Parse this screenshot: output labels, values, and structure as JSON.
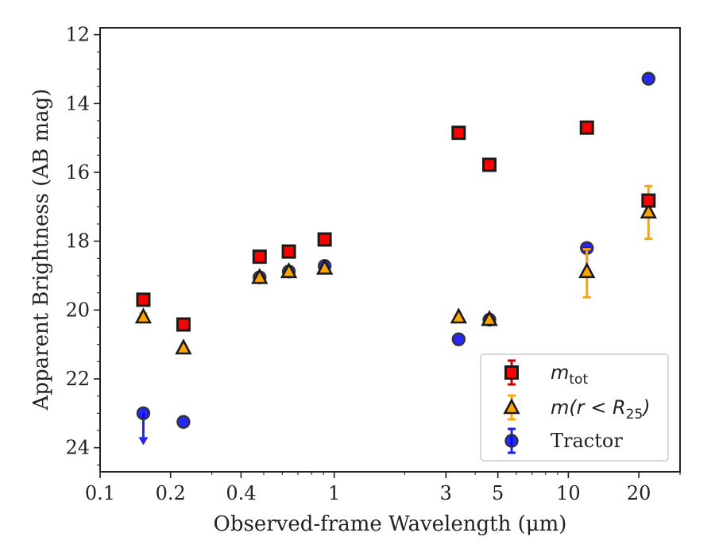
{
  "chart_data": {
    "type": "scatter",
    "xlabel": "Observed-frame Wavelength (μm)",
    "ylabel": "Apparent Brightness (AB mag)",
    "x_scale": "log",
    "xlim": [
      0.1,
      30
    ],
    "ylim": [
      24.7,
      11.8
    ],
    "y_inverted": true,
    "x_ticks": [
      0.1,
      0.2,
      0.4,
      1,
      3,
      5,
      10,
      20
    ],
    "x_tick_labels": [
      "0.1",
      "0.2",
      "0.4",
      "1",
      "3",
      "5",
      "10",
      "20"
    ],
    "y_ticks": [
      12,
      14,
      16,
      18,
      20,
      22,
      24
    ],
    "y_tick_labels": [
      "12",
      "14",
      "16",
      "18",
      "20",
      "22",
      "24"
    ],
    "grid": false,
    "legend_position": "bottom-right",
    "series": [
      {
        "key": "mtot",
        "name": "m_tot",
        "legend_main": "m",
        "legend_sub": "tot",
        "marker": "square",
        "face_color": "#ff0000",
        "edge_color": "#1a1a1a",
        "error_color": "#cc0000",
        "points": [
          {
            "x": 0.153,
            "y": 19.7
          },
          {
            "x": 0.227,
            "y": 20.42
          },
          {
            "x": 0.48,
            "y": 18.45
          },
          {
            "x": 0.64,
            "y": 18.3
          },
          {
            "x": 0.91,
            "y": 17.95
          },
          {
            "x": 3.4,
            "y": 14.85
          },
          {
            "x": 4.6,
            "y": 15.78
          },
          {
            "x": 12.0,
            "y": 14.7
          },
          {
            "x": 22.0,
            "y": 16.82
          }
        ]
      },
      {
        "key": "mr25",
        "name": "m(r < R25)",
        "legend_main": "m(r < R",
        "legend_sub": "25",
        "legend_tail": ")",
        "marker": "triangle",
        "face_color": "#ffa500",
        "edge_color": "#1a1a1a",
        "error_color": "#ffa500",
        "points": [
          {
            "x": 0.153,
            "y": 20.2,
            "err": 0.1
          },
          {
            "x": 0.227,
            "y": 21.1
          },
          {
            "x": 0.48,
            "y": 19.05
          },
          {
            "x": 0.64,
            "y": 18.88
          },
          {
            "x": 0.91,
            "y": 18.78
          },
          {
            "x": 3.4,
            "y": 20.2
          },
          {
            "x": 4.6,
            "y": 20.27
          },
          {
            "x": 12.0,
            "y": 18.88,
            "err_lo": 0.65,
            "err_hi": 0.75
          },
          {
            "x": 22.0,
            "y": 17.15,
            "err_lo": 0.75,
            "err_hi": 0.78
          }
        ]
      },
      {
        "key": "tractor",
        "name": "Tractor",
        "legend_main": "Tractor",
        "marker": "circle",
        "face_color": "#0000ff",
        "edge_color": "#333333",
        "error_color": "#2222ee",
        "points": [
          {
            "x": 0.153,
            "y": 23.0,
            "upper_limit": true
          },
          {
            "x": 0.227,
            "y": 23.25
          },
          {
            "x": 0.48,
            "y": 19.05
          },
          {
            "x": 0.64,
            "y": 18.88
          },
          {
            "x": 0.91,
            "y": 18.72
          },
          {
            "x": 3.4,
            "y": 20.85
          },
          {
            "x": 4.6,
            "y": 20.28
          },
          {
            "x": 12.0,
            "y": 18.2,
            "err_lo": 0.0,
            "err_hi": 0.7
          },
          {
            "x": 22.0,
            "y": 13.28
          }
        ]
      }
    ]
  }
}
